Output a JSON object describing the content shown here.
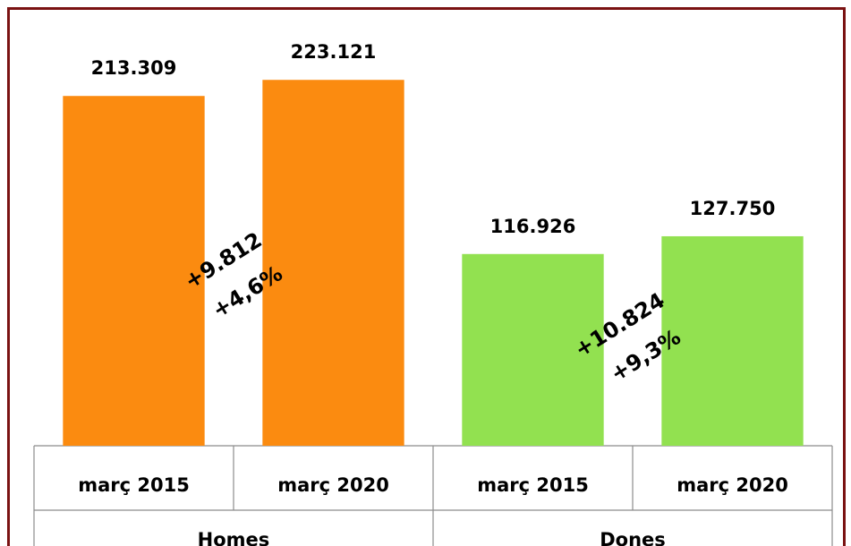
{
  "chart_data": {
    "type": "bar",
    "groups": [
      {
        "name": "Homes",
        "color": "#fb8b10",
        "categories": [
          "març 2015",
          "març 2020"
        ],
        "values": [
          213309,
          223121
        ],
        "value_labels": [
          "213.309",
          "223.121"
        ],
        "annotations": [
          "+9.812",
          "+4,6%"
        ]
      },
      {
        "name": "Dones",
        "color": "#92e150",
        "categories": [
          "març 2015",
          "març 2020"
        ],
        "values": [
          116926,
          127750
        ],
        "value_labels": [
          "116.926",
          "127.750"
        ],
        "annotations": [
          "+10.824",
          "+9,3%"
        ]
      }
    ],
    "ylim": [
      0,
      250000
    ]
  }
}
